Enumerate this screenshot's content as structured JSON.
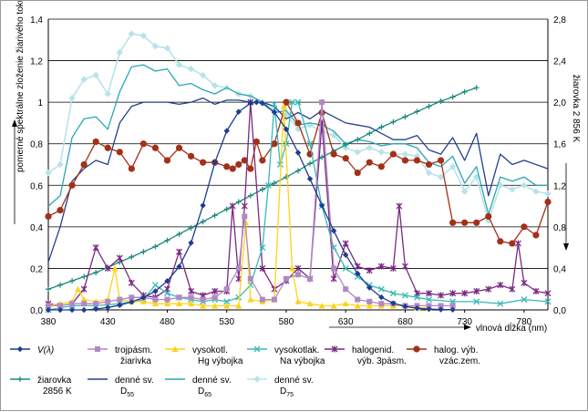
{
  "chart_data": {
    "type": "line",
    "xlabel": "vlnová dĺžka (nm)",
    "ylabel": "pomerné spektrálne zloženie žiarivého toku",
    "y2label": "žiarovka 2 856 K",
    "xlim": [
      380,
      800
    ],
    "ylim": [
      0,
      1.4
    ],
    "y2lim": [
      0,
      2.8
    ],
    "xticks": [
      "380",
      "430",
      "480",
      "530",
      "580",
      "630",
      "680",
      "730",
      "780"
    ],
    "yticks": [
      "0,0",
      "0,2",
      "0,4",
      "0,6",
      "0,8",
      "1",
      "1,2",
      "1,4"
    ],
    "y2ticks": [
      "0,0",
      "0,4",
      "0,8",
      "1,2",
      "1,6",
      "2,0",
      "2,4",
      "2,8"
    ],
    "grid": true,
    "legend_position": "bottom",
    "series": [
      {
        "key": "v",
        "name": "V(λ)",
        "color": "#1f3c8f",
        "marker": "diamond",
        "axis": "left",
        "x": [
          380,
          390,
          400,
          410,
          420,
          430,
          440,
          450,
          460,
          470,
          480,
          490,
          500,
          510,
          520,
          530,
          540,
          550,
          555,
          560,
          570,
          580,
          590,
          600,
          610,
          620,
          630,
          640,
          650,
          660,
          670,
          680,
          690,
          700,
          710,
          720
        ],
        "y": [
          0.0,
          0.0,
          0.0,
          0.0,
          0.004,
          0.012,
          0.023,
          0.038,
          0.06,
          0.09,
          0.139,
          0.208,
          0.323,
          0.503,
          0.71,
          0.862,
          0.954,
          0.995,
          1.0,
          0.995,
          0.952,
          0.87,
          0.757,
          0.631,
          0.503,
          0.381,
          0.265,
          0.175,
          0.107,
          0.061,
          0.032,
          0.017,
          0.008,
          0.004,
          0.002,
          0.001
        ]
      },
      {
        "key": "tri",
        "name": "trojpásm. žiarivka",
        "color": "#b089c4",
        "marker": "square",
        "axis": "left",
        "x": [
          380,
          390,
          400,
          410,
          420,
          430,
          440,
          450,
          460,
          470,
          480,
          490,
          500,
          510,
          520,
          530,
          540,
          545,
          550,
          560,
          570,
          580,
          590,
          600,
          610,
          620,
          630,
          640,
          650,
          660,
          670,
          680,
          690,
          700,
          710,
          720
        ],
        "y": [
          0.02,
          0.02,
          0.03,
          0.03,
          0.03,
          0.04,
          0.05,
          0.06,
          0.06,
          0.05,
          0.05,
          0.06,
          0.06,
          0.05,
          0.06,
          0.1,
          0.2,
          0.45,
          0.15,
          0.05,
          0.05,
          0.15,
          0.17,
          0.15,
          1.0,
          0.2,
          0.1,
          0.05,
          0.04,
          0.03,
          0.03,
          0.02,
          0.02,
          0.02,
          0.02,
          0.02
        ]
      },
      {
        "key": "hg",
        "name": "vysokotl. Hg výbojka",
        "color": "#ffd21a",
        "marker": "triangle",
        "axis": "left",
        "x": [
          380,
          390,
          400,
          405,
          410,
          420,
          430,
          436,
          440,
          450,
          460,
          470,
          480,
          490,
          500,
          510,
          520,
          530,
          540,
          546,
          550,
          560,
          570,
          578,
          585,
          590,
          600,
          610,
          620,
          630,
          640,
          650,
          660,
          670,
          680,
          690,
          700
        ],
        "y": [
          0.02,
          0.03,
          0.04,
          0.1,
          0.05,
          0.04,
          0.05,
          0.2,
          0.05,
          0.04,
          0.04,
          0.03,
          0.03,
          0.03,
          0.03,
          0.02,
          0.02,
          0.02,
          0.02,
          0.42,
          0.05,
          0.04,
          0.05,
          0.98,
          0.2,
          0.04,
          0.03,
          0.02,
          0.02,
          0.03,
          0.02,
          0.02,
          0.02,
          0.02,
          0.02,
          0.01,
          0.01
        ]
      },
      {
        "key": "na",
        "name": "vysokotlak. Na výbojka",
        "color": "#3ab8b8",
        "marker": "x",
        "axis": "left",
        "x": [
          380,
          400,
          420,
          440,
          460,
          470,
          480,
          490,
          500,
          510,
          520,
          530,
          540,
          550,
          560,
          565,
          570,
          575,
          580,
          585,
          590,
          600,
          610,
          620,
          630,
          640,
          650,
          660,
          670,
          680,
          690,
          700,
          720,
          740,
          760,
          780,
          800
        ],
        "y": [
          0.0,
          0.02,
          0.02,
          0.03,
          0.05,
          0.12,
          0.08,
          0.06,
          0.05,
          0.04,
          0.05,
          0.04,
          0.06,
          0.12,
          0.3,
          0.6,
          0.99,
          0.7,
          0.8,
          1.0,
          1.0,
          0.8,
          0.5,
          0.3,
          0.2,
          0.16,
          0.12,
          0.1,
          0.08,
          0.07,
          0.06,
          0.05,
          0.04,
          0.04,
          0.03,
          0.05,
          0.04
        ]
      },
      {
        "key": "hal",
        "name": "halogenid. výb. 3pásm.",
        "color": "#7a2a82",
        "marker": "star",
        "axis": "left",
        "x": [
          380,
          390,
          400,
          410,
          420,
          430,
          440,
          450,
          460,
          470,
          480,
          490,
          500,
          510,
          520,
          530,
          535,
          540,
          545,
          550,
          560,
          570,
          580,
          590,
          600,
          610,
          620,
          630,
          640,
          650,
          660,
          670,
          675,
          680,
          690,
          700,
          710,
          720,
          730,
          740,
          750,
          760,
          770,
          775,
          780,
          790,
          800
        ],
        "y": [
          0.03,
          0.02,
          0.03,
          0.1,
          0.3,
          0.2,
          0.25,
          0.13,
          0.07,
          0.06,
          0.1,
          0.28,
          0.09,
          0.07,
          0.09,
          0.09,
          0.5,
          0.15,
          0.5,
          1.0,
          0.2,
          0.1,
          0.14,
          0.2,
          0.15,
          0.9,
          0.15,
          0.32,
          0.21,
          0.19,
          0.21,
          0.2,
          0.5,
          0.21,
          0.08,
          0.08,
          0.07,
          0.08,
          0.08,
          0.09,
          0.1,
          0.12,
          0.1,
          0.32,
          0.13,
          0.09,
          0.08
        ]
      },
      {
        "key": "vzac",
        "name": "halog. výb. vzác.zem.",
        "color": "#a33019",
        "marker": "circle",
        "axis": "left",
        "x": [
          380,
          390,
          400,
          410,
          420,
          430,
          440,
          450,
          460,
          470,
          480,
          490,
          500,
          510,
          520,
          530,
          535,
          540,
          545,
          550,
          555,
          560,
          570,
          580,
          590,
          600,
          610,
          620,
          630,
          640,
          650,
          660,
          670,
          680,
          690,
          700,
          710,
          720,
          730,
          740,
          750,
          760,
          770,
          780,
          790,
          800
        ],
        "y": [
          0.45,
          0.48,
          0.6,
          0.7,
          0.81,
          0.78,
          0.76,
          0.68,
          0.8,
          0.78,
          0.72,
          0.78,
          0.74,
          0.71,
          0.71,
          0.69,
          0.68,
          0.7,
          0.72,
          0.68,
          0.81,
          0.72,
          0.8,
          1.0,
          0.9,
          0.75,
          0.95,
          0.75,
          0.73,
          0.66,
          0.71,
          0.69,
          0.75,
          0.72,
          0.72,
          0.7,
          0.72,
          0.42,
          0.42,
          0.42,
          0.45,
          0.33,
          0.32,
          0.4,
          0.36,
          0.52
        ]
      },
      {
        "key": "inc",
        "name": "žiarovka 2856 K",
        "color": "#1b8a7d",
        "marker": "plus",
        "axis": "right",
        "x": [
          380,
          390,
          400,
          410,
          420,
          430,
          440,
          450,
          460,
          470,
          480,
          490,
          500,
          510,
          520,
          530,
          540,
          550,
          560,
          570,
          580,
          590,
          600,
          610,
          620,
          630,
          640,
          650,
          660,
          670,
          680,
          690,
          700,
          710,
          720,
          730,
          740
        ],
        "y": [
          0.2,
          0.24,
          0.28,
          0.32,
          0.36,
          0.41,
          0.46,
          0.51,
          0.56,
          0.61,
          0.67,
          0.73,
          0.79,
          0.85,
          0.91,
          0.97,
          1.04,
          1.1,
          1.16,
          1.22,
          1.28,
          1.34,
          1.41,
          1.47,
          1.53,
          1.59,
          1.64,
          1.7,
          1.76,
          1.81,
          1.86,
          1.91,
          1.96,
          2.01,
          2.05,
          2.1,
          2.14
        ]
      },
      {
        "key": "d55",
        "name": "denné sv. D55",
        "sub": "55",
        "color": "#22418f",
        "marker": "none",
        "axis": "left",
        "x": [
          380,
          390,
          400,
          410,
          420,
          430,
          440,
          450,
          460,
          470,
          480,
          490,
          500,
          510,
          520,
          530,
          540,
          550,
          560,
          570,
          580,
          590,
          600,
          610,
          620,
          630,
          640,
          650,
          660,
          670,
          680,
          690,
          700,
          710,
          720,
          730,
          740,
          750,
          760,
          770,
          780,
          790,
          800
        ],
        "y": [
          0.23,
          0.4,
          0.62,
          0.68,
          0.72,
          0.7,
          0.9,
          0.98,
          1.0,
          1.0,
          1.0,
          0.99,
          1.0,
          1.02,
          0.99,
          1.01,
          1.01,
          1.0,
          1.0,
          0.98,
          0.92,
          0.95,
          0.92,
          0.96,
          0.93,
          0.9,
          0.89,
          0.88,
          0.85,
          0.82,
          0.82,
          0.84,
          0.77,
          0.75,
          0.83,
          0.72,
          0.85,
          0.55,
          0.75,
          0.7,
          0.72,
          0.7,
          0.68
        ]
      },
      {
        "key": "d65",
        "name": "denné sv. D65",
        "sub": "65",
        "color": "#2aa7b5",
        "marker": "none",
        "axis": "left",
        "x": [
          380,
          390,
          400,
          410,
          420,
          430,
          440,
          450,
          460,
          470,
          480,
          490,
          500,
          510,
          520,
          530,
          540,
          550,
          560,
          570,
          580,
          590,
          600,
          610,
          620,
          630,
          640,
          650,
          660,
          670,
          680,
          690,
          700,
          710,
          720,
          730,
          740,
          750,
          760,
          770,
          780,
          790,
          800
        ],
        "y": [
          0.5,
          0.55,
          0.83,
          0.92,
          0.93,
          0.87,
          1.05,
          1.17,
          1.18,
          1.15,
          1.16,
          1.08,
          1.09,
          1.06,
          1.04,
          1.07,
          1.04,
          1.03,
          1.0,
          0.95,
          0.96,
          0.89,
          0.9,
          0.89,
          0.86,
          0.8,
          0.82,
          0.81,
          0.79,
          0.8,
          0.8,
          0.78,
          0.71,
          0.69,
          0.74,
          0.61,
          0.69,
          0.46,
          0.64,
          0.62,
          0.64,
          0.6,
          0.6
        ]
      },
      {
        "key": "d75",
        "name": "denné sv. D75",
        "sub": "75",
        "color": "#b7e3ea",
        "marker": "diamond-light",
        "axis": "left",
        "x": [
          380,
          390,
          400,
          410,
          420,
          430,
          440,
          450,
          460,
          470,
          480,
          490,
          500,
          510,
          520,
          530,
          540,
          550,
          560,
          570,
          580,
          590,
          600,
          610,
          620,
          630,
          640,
          650,
          660,
          670,
          680,
          690,
          700,
          710,
          720,
          730,
          740,
          750,
          760,
          770,
          780,
          790,
          800
        ],
        "y": [
          0.66,
          0.7,
          1.02,
          1.11,
          1.13,
          1.04,
          1.24,
          1.33,
          1.32,
          1.27,
          1.26,
          1.18,
          1.16,
          1.13,
          1.08,
          1.07,
          1.04,
          1.03,
          1.0,
          0.96,
          0.94,
          0.87,
          0.89,
          0.86,
          0.84,
          0.78,
          0.76,
          0.78,
          0.76,
          0.75,
          0.75,
          0.74,
          0.66,
          0.64,
          0.69,
          0.57,
          0.64,
          0.43,
          0.6,
          0.58,
          0.6,
          0.57,
          0.56
        ]
      }
    ]
  },
  "legend_rows": [
    [
      {
        "key": "v",
        "line1": "V(λ)",
        "line2": ""
      },
      {
        "key": "tri",
        "line1": "trojpásm.",
        "line2": "žiarivka"
      },
      {
        "key": "hg",
        "line1": "vysokotl.",
        "line2": "Hg výbojka"
      },
      {
        "key": "na",
        "line1": "vysokotlak.",
        "line2": "Na výbojka"
      },
      {
        "key": "hal",
        "line1": "halogenid.",
        "line2": "výb. 3pásm."
      },
      {
        "key": "vzac",
        "line1": "halog. výb.",
        "line2": "vzác.zem."
      }
    ],
    [
      {
        "key": "inc",
        "line1": "žiarovka",
        "line2": "2856 K"
      },
      {
        "key": "d55",
        "line1": "denné sv.",
        "line2": "D",
        "sub": "55"
      },
      {
        "key": "d65",
        "line1": "denné sv.",
        "line2": "D",
        "sub": "65"
      },
      {
        "key": "d75",
        "line1": "denné sv.",
        "line2": "D",
        "sub": "75"
      }
    ]
  ]
}
